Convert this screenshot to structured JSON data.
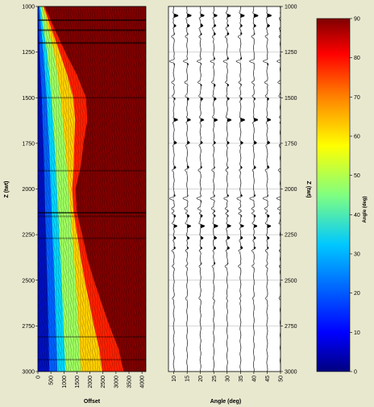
{
  "chart_data": [
    {
      "type": "heatmap",
      "title": "",
      "xlabel": "Offset",
      "ylabel": "Z (twt)",
      "xlim": [
        0,
        4150
      ],
      "ylim": [
        3000,
        1000
      ],
      "x_ticks": [
        "0",
        "500",
        "1000",
        "1500",
        "2000",
        "2500",
        "3000",
        "3500",
        "4000"
      ],
      "y_ticks": [
        "1000",
        "1250",
        "1500",
        "1750",
        "2000",
        "2250",
        "2500",
        "2750",
        "3000"
      ],
      "colorbar": {
        "label": "Angle (deg)",
        "range": [
          0,
          90
        ],
        "ticks": [
          "0",
          "10",
          "20",
          "30",
          "40",
          "50",
          "60",
          "70",
          "80",
          "90"
        ],
        "colormap": "jet"
      },
      "angle_contour_offset_at_z": {
        "z": [
          1000,
          1125,
          1250,
          1375,
          1500,
          1625,
          1750,
          1875,
          2000,
          2125,
          2250,
          2375,
          2500,
          2625,
          2750,
          2875,
          3000
        ],
        "angle_10_deg": [
          25,
          40,
          70,
          110,
          150,
          180,
          210,
          240,
          260,
          280,
          310,
          330,
          360,
          380,
          400,
          420,
          440
        ],
        "angle_30_deg": [
          100,
          220,
          350,
          440,
          520,
          580,
          640,
          690,
          730,
          780,
          820,
          870,
          910,
          950,
          980,
          1020,
          1060
        ],
        "angle_50_deg": [
          180,
          400,
          620,
          760,
          880,
          960,
          1040,
          1110,
          1180,
          1250,
          1320,
          1390,
          1450,
          1510,
          1560,
          1610,
          1650
        ],
        "angle_70_deg": [
          260,
          650,
          1050,
          1500,
          1850,
          1900,
          1750,
          1650,
          1450,
          1500,
          1700,
          1900,
          2150,
          2450,
          2750,
          3100,
          3300
        ]
      }
    },
    {
      "type": "line",
      "title": "",
      "xlabel": "Angle (deg)",
      "ylabel": "Z (twt)",
      "xlim": [
        8,
        50
      ],
      "ylim": [
        3000,
        1000
      ],
      "x_ticks": [
        "10",
        "15",
        "20",
        "25",
        "30",
        "35",
        "40",
        "45",
        "50"
      ],
      "y_ticks": [
        "1000",
        "1250",
        "1500",
        "1750",
        "2000",
        "2250",
        "2500",
        "2750",
        "3000"
      ],
      "traces_at_angle": [
        10,
        15,
        20,
        25,
        30,
        35,
        40,
        45,
        50
      ],
      "grid": true
    }
  ],
  "colors": {
    "background": "#e8e8cf",
    "colormap": [
      "#00007f",
      "#0000ff",
      "#0080ff",
      "#00ffff",
      "#80ff80",
      "#ffff00",
      "#ff8000",
      "#ff0000",
      "#7f0000"
    ]
  }
}
